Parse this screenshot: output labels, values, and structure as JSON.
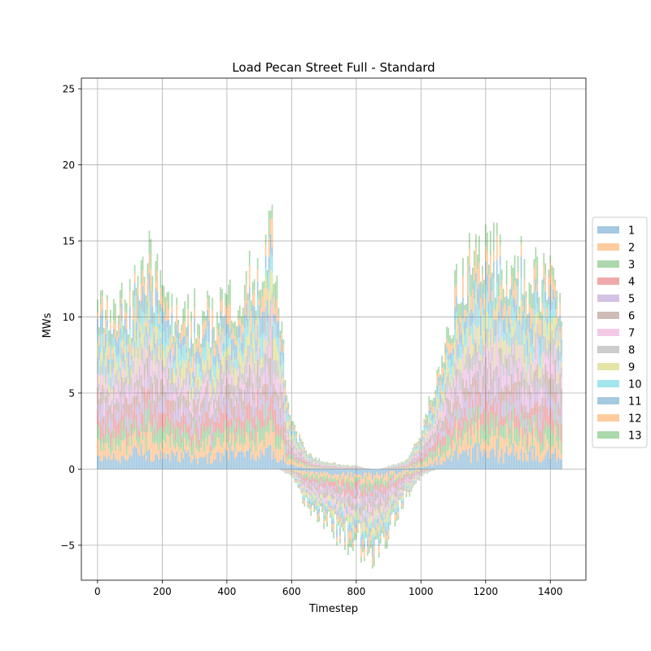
{
  "chart_data": {
    "type": "bar",
    "stacked": true,
    "title": "Load Pecan Street Full - Standard",
    "xlabel": "Timestep",
    "ylabel": "MWs",
    "xlim": [
      -50,
      1510
    ],
    "ylim": [
      -7.3,
      25.7
    ],
    "xticks": [
      0,
      200,
      400,
      600,
      800,
      1000,
      1200,
      1400
    ],
    "xtick_labels": [
      "0",
      "200",
      "400",
      "600",
      "800",
      "1000",
      "1200",
      "1400"
    ],
    "yticks": [
      -5,
      0,
      5,
      10,
      15,
      20,
      25
    ],
    "ytick_labels": [
      "−5",
      "0",
      "5",
      "10",
      "15",
      "20",
      "25"
    ],
    "grid": true,
    "legend_position": "outside-right",
    "bar_opacity": 0.4,
    "x_range": [
      0,
      1439
    ],
    "series": [
      {
        "name": "1",
        "color": "#1f77b4"
      },
      {
        "name": "2",
        "color": "#ff7f0e"
      },
      {
        "name": "3",
        "color": "#2ca02c"
      },
      {
        "name": "4",
        "color": "#d62728"
      },
      {
        "name": "5",
        "color": "#9467bd"
      },
      {
        "name": "6",
        "color": "#8c564b"
      },
      {
        "name": "7",
        "color": "#e377c2"
      },
      {
        "name": "8",
        "color": "#7f7f7f"
      },
      {
        "name": "9",
        "color": "#bcbd22"
      },
      {
        "name": "10",
        "color": "#17becf"
      },
      {
        "name": "11",
        "color": "#1f77b4"
      },
      {
        "name": "12",
        "color": "#ff7f0e"
      },
      {
        "name": "13",
        "color": "#2ca02c"
      }
    ],
    "envelope": {
      "x": [
        0,
        50,
        100,
        130,
        160,
        200,
        250,
        300,
        350,
        400,
        450,
        500,
        535,
        560,
        600,
        650,
        700,
        750,
        800,
        850,
        870,
        900,
        950,
        1000,
        1050,
        1100,
        1150,
        1200,
        1250,
        1300,
        1350,
        1400,
        1439
      ],
      "total": [
        10.5,
        10,
        10.5,
        12,
        14,
        10.5,
        9.5,
        10,
        10,
        11,
        11,
        13.5,
        16,
        10,
        3,
        1,
        0.5,
        0.3,
        0.2,
        0,
        0,
        0.2,
        0.5,
        2,
        6,
        11,
        13,
        13.5,
        14,
        13,
        12.5,
        12.5,
        12
      ],
      "negative": [
        0,
        0,
        0,
        0,
        0,
        0,
        0,
        0,
        0,
        0,
        0,
        0,
        0,
        0,
        -0.5,
        -2.5,
        -3.5,
        -4.5,
        -5,
        -5.5,
        -6.5,
        -4,
        -2,
        -0.5,
        0,
        0,
        0,
        0,
        0,
        0,
        0,
        0,
        0
      ]
    }
  }
}
